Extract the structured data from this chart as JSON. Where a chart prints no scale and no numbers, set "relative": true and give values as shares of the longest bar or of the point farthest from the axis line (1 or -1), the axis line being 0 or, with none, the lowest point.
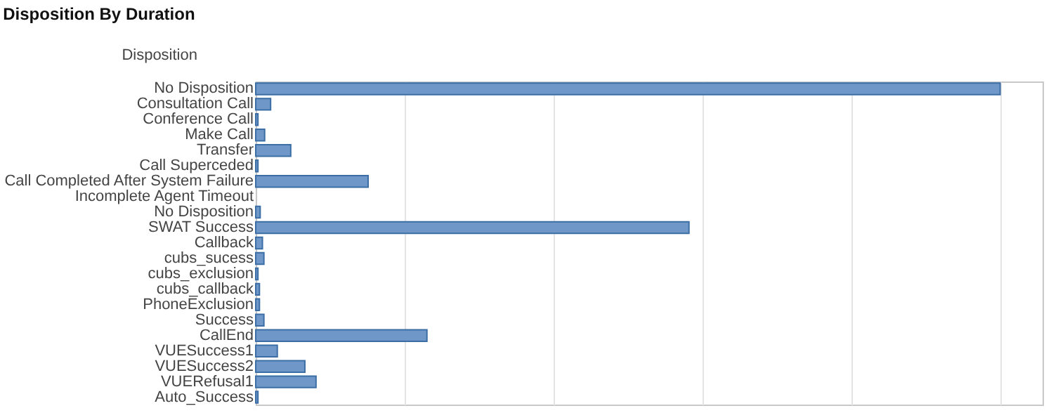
{
  "chart_data": {
    "type": "bar",
    "orientation": "horizontal",
    "relative": true,
    "title": "Disposition By Duration",
    "ylabel": "Disposition",
    "grid": "x",
    "color": "#6f98c8",
    "categories": [
      "No Disposition",
      "Consultation Call",
      "Conference Call",
      "Make Call",
      "Transfer",
      "Call Superceded",
      "Call Completed After System Failure",
      "Incomplete Agent Timeout",
      "No Disposition",
      "SWAT Success",
      "Callback",
      "cubs_sucess",
      "cubs_exclusion",
      "cubs_callback",
      "PhoneExclusion",
      "Success",
      "CallEnd",
      "VUESuccess1",
      "VUESuccess2",
      "VUERefusal1",
      "Auto_Success"
    ],
    "values": [
      1,
      0.02,
      0.003,
      0.012,
      0.047,
      0.003,
      0.151,
      0,
      0.006,
      0.582,
      0.009,
      0.011,
      0.003,
      0.005,
      0.005,
      0.011,
      0.23,
      0.029,
      0.066,
      0.081,
      0.003
    ]
  }
}
